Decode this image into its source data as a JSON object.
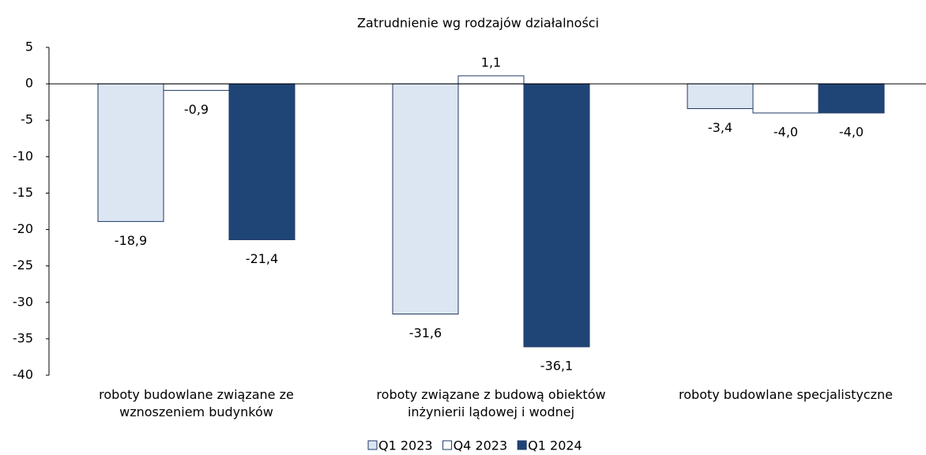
{
  "chart_data": {
    "type": "bar",
    "title": "Zatrudnienie wg rodzajów działalności",
    "categories": [
      "roboty budowlane związane ze\nwznoszeniem budynków",
      "roboty związane z budową obiektów\ninżynierii lądowej i wodnej",
      "roboty budowlane specjalistyczne"
    ],
    "series": [
      {
        "name": "Q1 2023",
        "color": "#dce6f2",
        "values": [
          -18.9,
          -31.6,
          -3.4
        ],
        "value_labels": [
          "-18,9",
          "-31,6",
          "-3,4"
        ]
      },
      {
        "name": "Q4 2023",
        "color": "#ffffff",
        "values": [
          -0.9,
          1.1,
          -4.0
        ],
        "value_labels": [
          "-0,9",
          "1,1",
          "-4,0"
        ]
      },
      {
        "name": "Q1 2024",
        "color": "#1f4577",
        "values": [
          -21.4,
          -36.1,
          -4.0
        ],
        "value_labels": [
          "-21,4",
          "-36,1",
          "-4,0"
        ]
      }
    ],
    "ylim": [
      -40,
      5
    ],
    "yticks": [
      5,
      0,
      -5,
      -10,
      -15,
      -20,
      -25,
      -30,
      -35,
      -40
    ],
    "legend": "bottom"
  }
}
